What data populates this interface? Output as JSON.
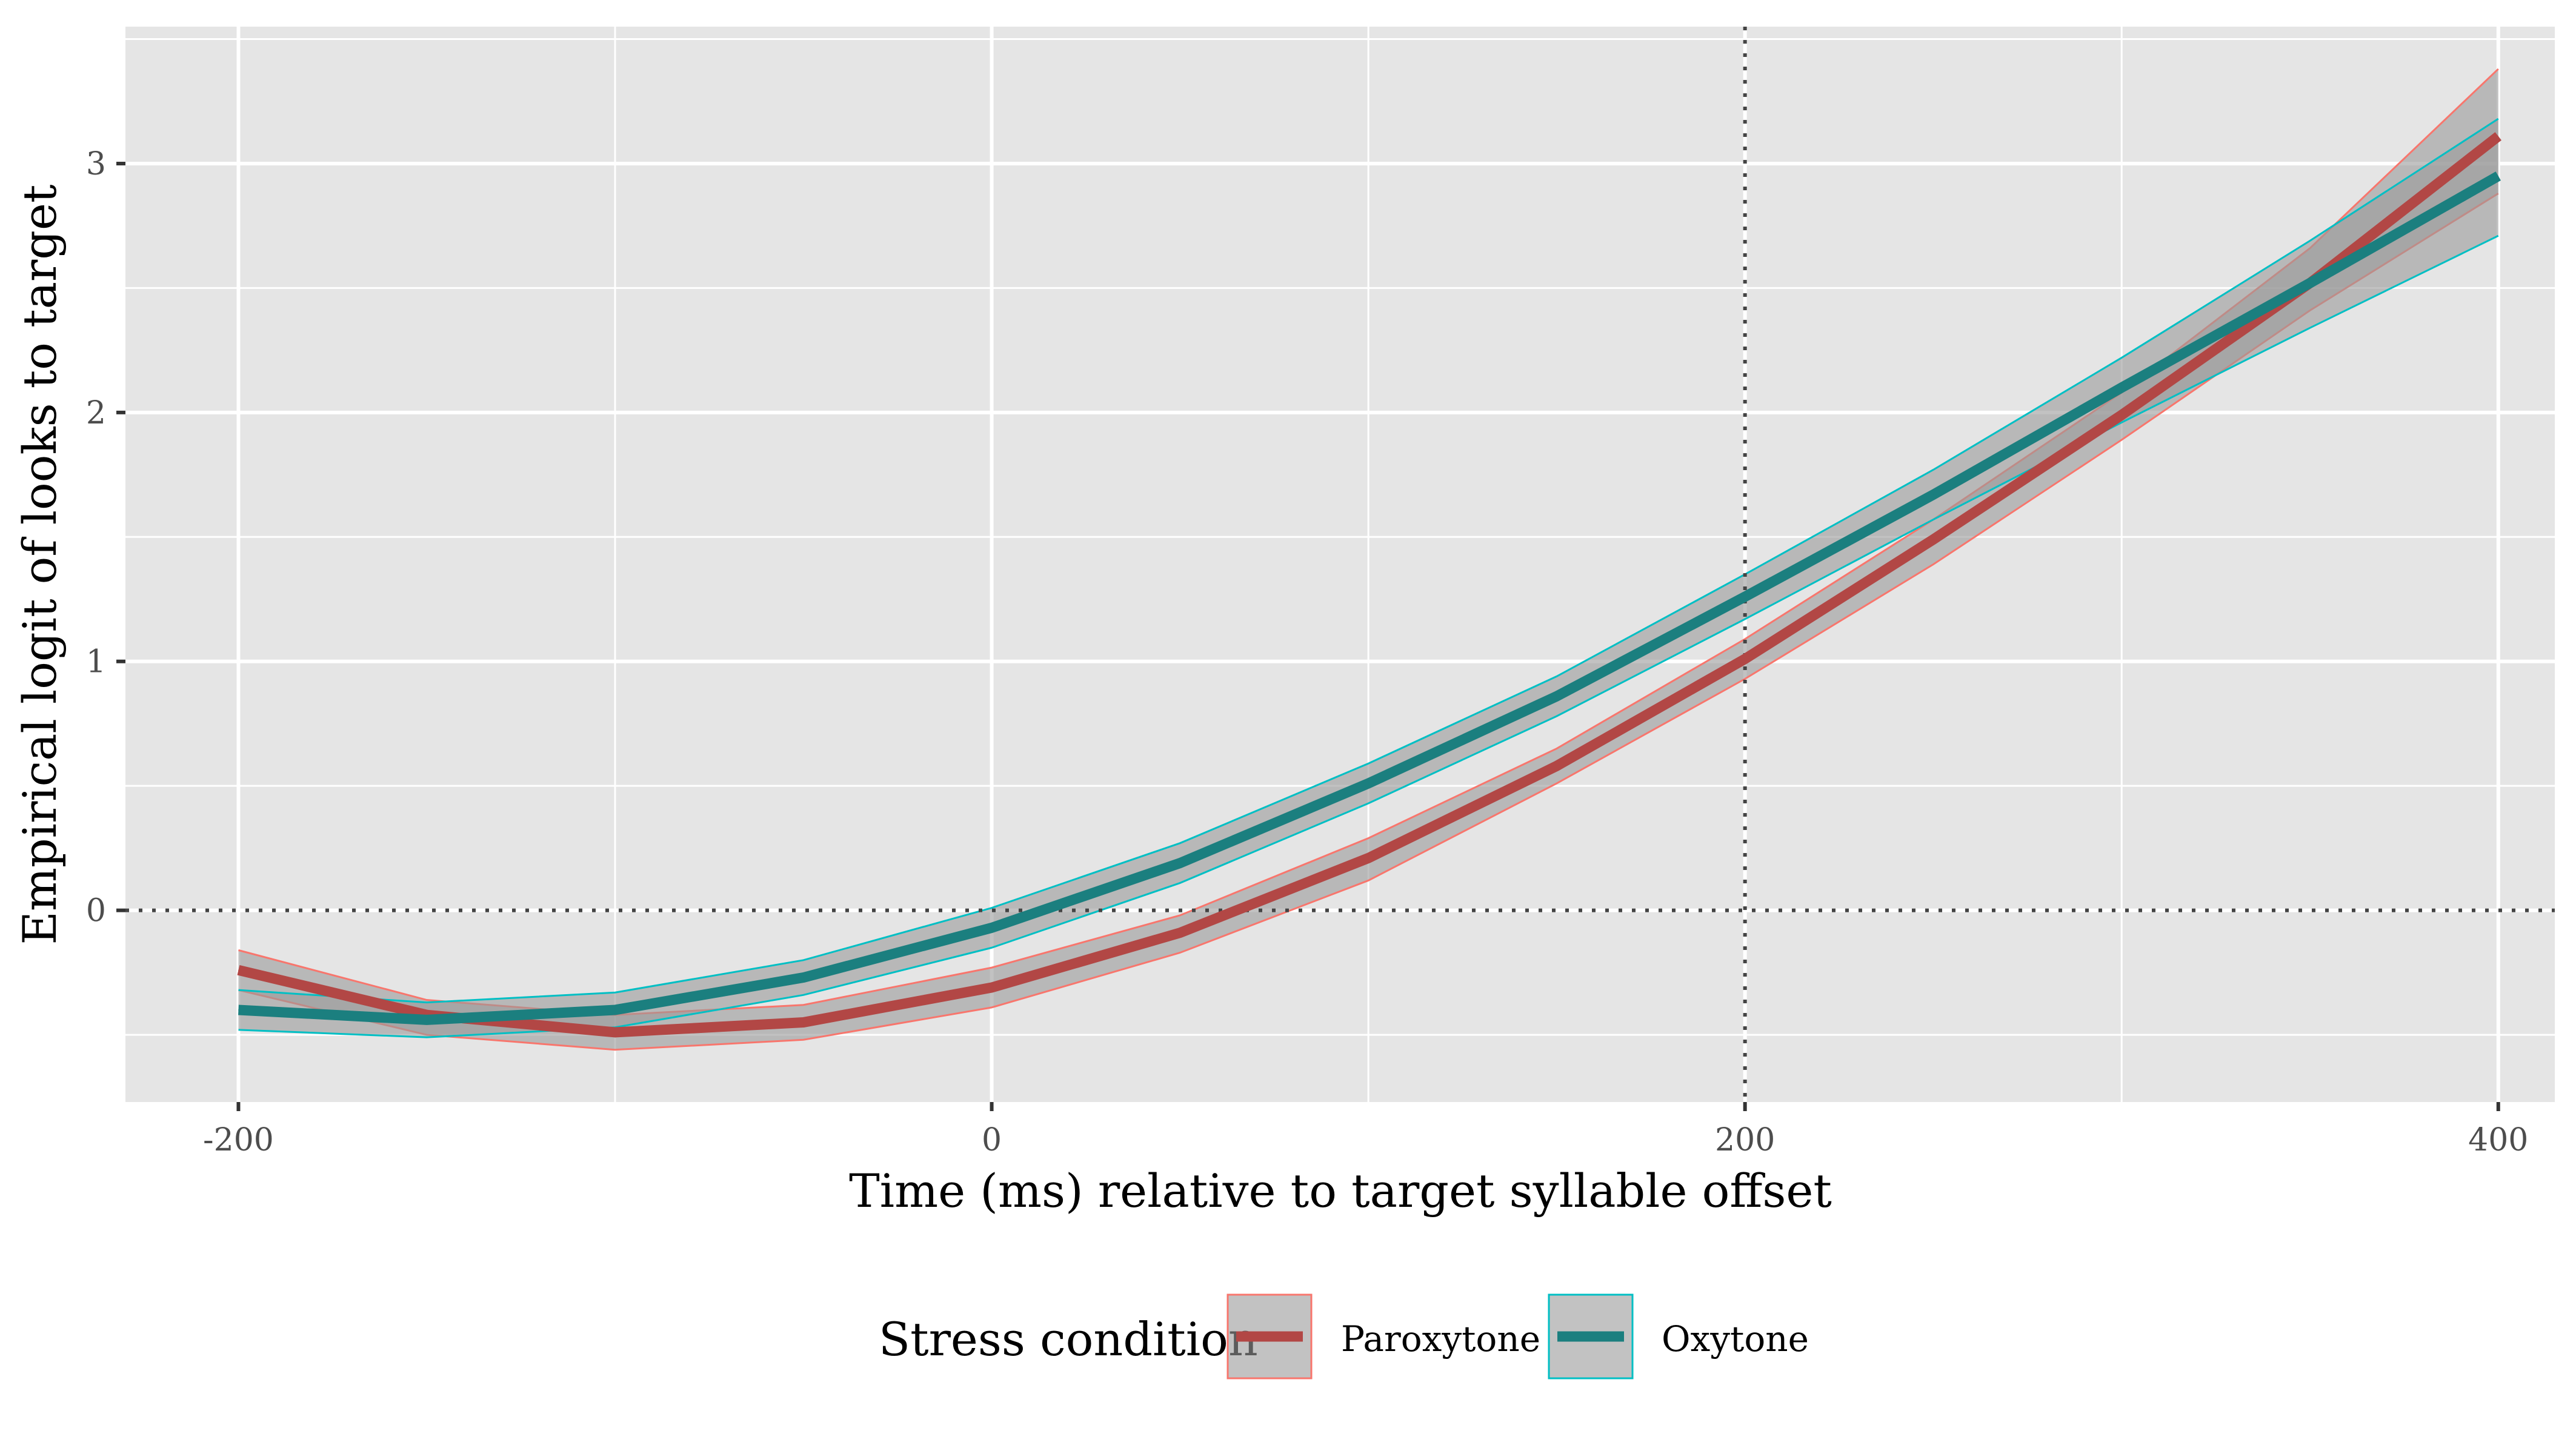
{
  "chart_data": {
    "type": "line",
    "title": "",
    "xlabel": "Time (ms) relative to target syllable offset",
    "ylabel": "Empirical logit of looks to target",
    "xlim": [
      -230,
      415
    ],
    "ylim": [
      -0.77,
      3.55
    ],
    "xticks": [
      -200,
      0,
      200,
      400
    ],
    "xtick_labels": [
      "-200",
      "0",
      "200",
      "400"
    ],
    "yticks": [
      0,
      1,
      2,
      3
    ],
    "ytick_labels": [
      "0",
      "1",
      "2",
      "3"
    ],
    "x": [
      -200,
      -150,
      -100,
      -50,
      0,
      50,
      100,
      150,
      200,
      250,
      300,
      350,
      400
    ],
    "series": [
      {
        "name": "Paroxytone",
        "color": "#B24745",
        "fill_edge": "#F8766D",
        "values": [
          -0.24,
          -0.42,
          -0.49,
          -0.45,
          -0.31,
          -0.09,
          0.21,
          0.58,
          1.01,
          1.49,
          1.99,
          2.52,
          3.11
        ],
        "lower": [
          -0.32,
          -0.5,
          -0.56,
          -0.52,
          -0.39,
          -0.17,
          0.12,
          0.51,
          0.93,
          1.39,
          1.89,
          2.41,
          2.88
        ],
        "upper": [
          -0.16,
          -0.36,
          -0.42,
          -0.38,
          -0.23,
          -0.02,
          0.29,
          0.65,
          1.09,
          1.57,
          2.08,
          2.66,
          3.38
        ]
      },
      {
        "name": "Oxytone",
        "color": "#1B7F7F",
        "fill_edge": "#00BFC4",
        "values": [
          -0.4,
          -0.44,
          -0.4,
          -0.27,
          -0.07,
          0.19,
          0.51,
          0.86,
          1.26,
          1.67,
          2.1,
          2.52,
          2.95
        ],
        "lower": [
          -0.48,
          -0.51,
          -0.47,
          -0.34,
          -0.15,
          0.11,
          0.43,
          0.78,
          1.17,
          1.57,
          1.96,
          2.34,
          2.71
        ],
        "upper": [
          -0.32,
          -0.37,
          -0.33,
          -0.2,
          0.01,
          0.27,
          0.59,
          0.94,
          1.35,
          1.77,
          2.22,
          2.69,
          3.18
        ]
      }
    ],
    "reference_lines": {
      "x": 200,
      "y": 0,
      "style": "dotted"
    },
    "grid": true,
    "legend": {
      "title": "Stress condition",
      "position": "bottom"
    },
    "colors": {
      "panel": "#E5E5E5",
      "grid": "#FFFFFF",
      "ribbon": "#999999",
      "reference": "#444444"
    }
  }
}
